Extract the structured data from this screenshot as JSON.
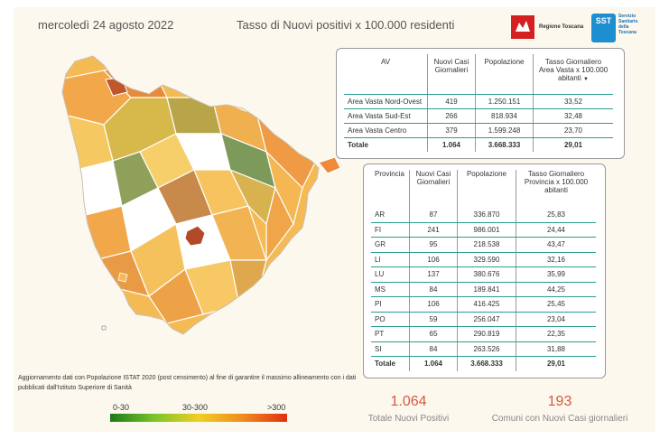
{
  "header": {
    "date": "mercoledì 24 agosto 2022",
    "title": "Tasso di Nuovi positivi x 100.000 residenti",
    "logo_regione": "Regione Toscana",
    "logo_sst_short": "SST",
    "logo_sst_text": "Servizio Sanitario della Toscana"
  },
  "av_table": {
    "headers": [
      "AV",
      "Nuovi Casi Giornalieri",
      "Popolazione",
      "Tasso Giornaliero Area Vasta x 100.000 abitanti"
    ],
    "rows": [
      {
        "name": "Area Vasta Nord-Ovest",
        "casi": "419",
        "pop": "1.250.151",
        "tasso": "33,52"
      },
      {
        "name": "Area Vasta Sud-Est",
        "casi": "266",
        "pop": "818.934",
        "tasso": "32,48"
      },
      {
        "name": "Area Vasta Centro",
        "casi": "379",
        "pop": "1.599.248",
        "tasso": "23,70"
      }
    ],
    "total": {
      "name": "Totale",
      "casi": "1.064",
      "pop": "3.668.333",
      "tasso": "29,01"
    }
  },
  "prov_table": {
    "headers": [
      "Provincia",
      "Nuovi Casi Giornalieri",
      "Popolazione",
      "Tasso Giornaliero Provincia x 100.000 abitanti"
    ],
    "rows": [
      {
        "name": "AR",
        "casi": "87",
        "pop": "336.870",
        "tasso": "25,83"
      },
      {
        "name": "FI",
        "casi": "241",
        "pop": "986.001",
        "tasso": "24,44"
      },
      {
        "name": "GR",
        "casi": "95",
        "pop": "218.538",
        "tasso": "43,47"
      },
      {
        "name": "LI",
        "casi": "106",
        "pop": "329.590",
        "tasso": "32,16"
      },
      {
        "name": "LU",
        "casi": "137",
        "pop": "380.676",
        "tasso": "35,99"
      },
      {
        "name": "MS",
        "casi": "84",
        "pop": "189.841",
        "tasso": "44,25"
      },
      {
        "name": "PI",
        "casi": "106",
        "pop": "416.425",
        "tasso": "25,45"
      },
      {
        "name": "PO",
        "casi": "59",
        "pop": "256.047",
        "tasso": "23,04"
      },
      {
        "name": "PT",
        "casi": "65",
        "pop": "290.819",
        "tasso": "22,35"
      },
      {
        "name": "SI",
        "casi": "84",
        "pop": "263.526",
        "tasso": "31,88"
      }
    ],
    "total": {
      "name": "Totale",
      "casi": "1.064",
      "pop": "3.668.333",
      "tasso": "29,01"
    }
  },
  "footnote": "Aggiornamento dati con Popolazione ISTAT 2020 (post censimento) al fine di garantire il massimo allineamento con i dati pubblicati dall'Istituto Superiore di Sanità",
  "legend": {
    "low": "0-30",
    "mid": "30-300",
    "high": ">300"
  },
  "kpis": {
    "positivi_value": "1.064",
    "positivi_label": "Totale Nuovi Positivi",
    "comuni_value": "193",
    "comuni_label": "Comuni con Nuovi Casi giornalieri"
  },
  "colors": {
    "accent": "#d4593f",
    "rule": "#2a9d8f",
    "panel": "#fdf8ed"
  }
}
